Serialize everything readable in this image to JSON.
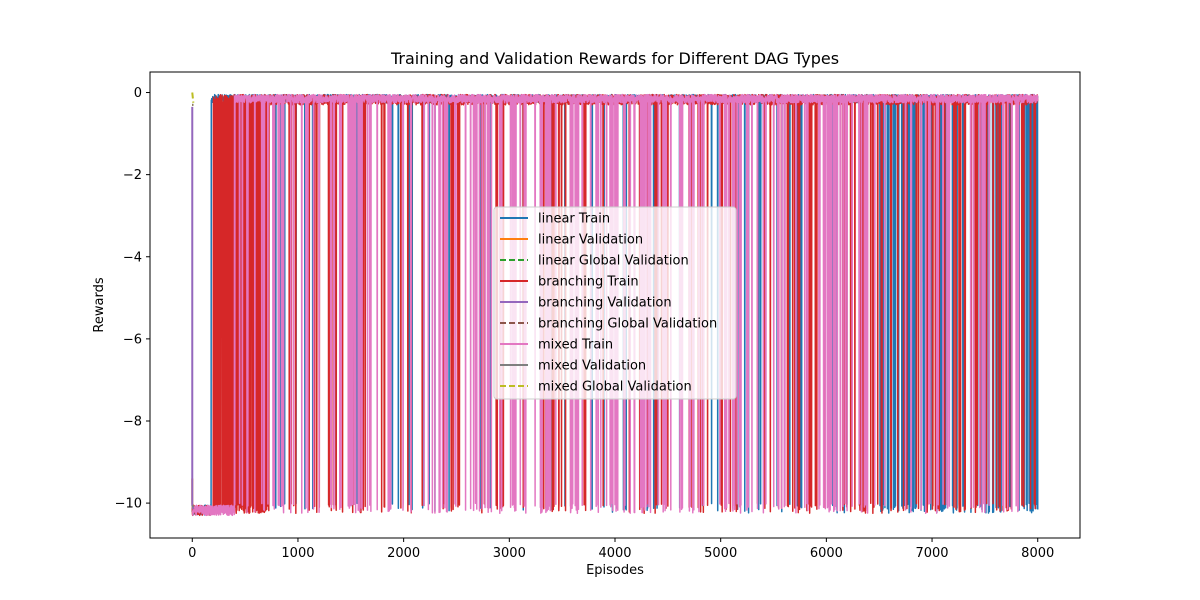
{
  "chart_data": {
    "type": "line",
    "title": "Training and Validation Rewards for Different DAG Types",
    "xlabel": "Episodes",
    "ylabel": "Rewards",
    "xlim": [
      -400,
      8400
    ],
    "ylim": [
      -10.85,
      0.5
    ],
    "xticks": [
      0,
      1000,
      2000,
      3000,
      4000,
      5000,
      6000,
      7000,
      8000
    ],
    "yticks": [
      0,
      -2,
      -4,
      -6,
      -8,
      -10
    ],
    "legend_position": "center",
    "grid": false,
    "series": [
      {
        "name": "linear Train",
        "color": "#1f77b4",
        "style": "solid",
        "description_points": [
          [
            0,
            -10.3
          ],
          [
            100,
            -10.3
          ],
          [
            200,
            -10.2
          ],
          [
            500,
            -0.15
          ],
          [
            3000,
            -0.1
          ],
          [
            6700,
            -0.1
          ],
          [
            6750,
            -10.2
          ],
          [
            7200,
            -10.2
          ],
          [
            7300,
            -0.2
          ],
          [
            7900,
            -10.2
          ],
          [
            8000,
            -0.1
          ]
        ]
      },
      {
        "name": "linear Validation",
        "color": "#ff7f0e",
        "style": "solid",
        "x": [
          0,
          0,
          5,
          10
        ],
        "y": [
          -9.4,
          -10.0,
          -10.1,
          -10.15
        ]
      },
      {
        "name": "linear Global Validation",
        "color": "#2ca02c",
        "style": "dashed",
        "x": [
          0,
          10
        ],
        "y": [
          -0.3,
          -0.3
        ]
      },
      {
        "name": "branching Train",
        "color": "#d62728",
        "style": "solid",
        "description_points": [
          [
            0,
            -10.1
          ],
          [
            200,
            -10.2
          ],
          [
            300,
            -10.3
          ],
          [
            400,
            -0.1
          ],
          [
            8000,
            -0.05
          ]
        ]
      },
      {
        "name": "branching Validation",
        "color": "#9467bd",
        "style": "solid",
        "x": [
          0,
          0,
          5,
          10
        ],
        "y": [
          -0.35,
          -10.05,
          -10.1,
          -10.15
        ]
      },
      {
        "name": "branching Global Validation",
        "color": "#8c564b",
        "style": "dashed",
        "x": [
          0,
          10
        ],
        "y": [
          -0.3,
          -0.3
        ]
      },
      {
        "name": "mixed Train",
        "color": "#e377c2",
        "style": "solid",
        "description_points": [
          [
            0,
            -10.05
          ],
          [
            400,
            -10.1
          ],
          [
            500,
            -0.1
          ],
          [
            8000,
            -0.1
          ]
        ]
      },
      {
        "name": "mixed Validation",
        "color": "#7f7f7f",
        "style": "solid",
        "x": [
          0,
          10
        ],
        "y": [
          -10.05,
          -10.1
        ]
      },
      {
        "name": "mixed Global Validation",
        "color": "#bcbd22",
        "style": "dashed",
        "x": [
          0,
          10
        ],
        "y": [
          0.0,
          -0.25
        ]
      }
    ]
  }
}
